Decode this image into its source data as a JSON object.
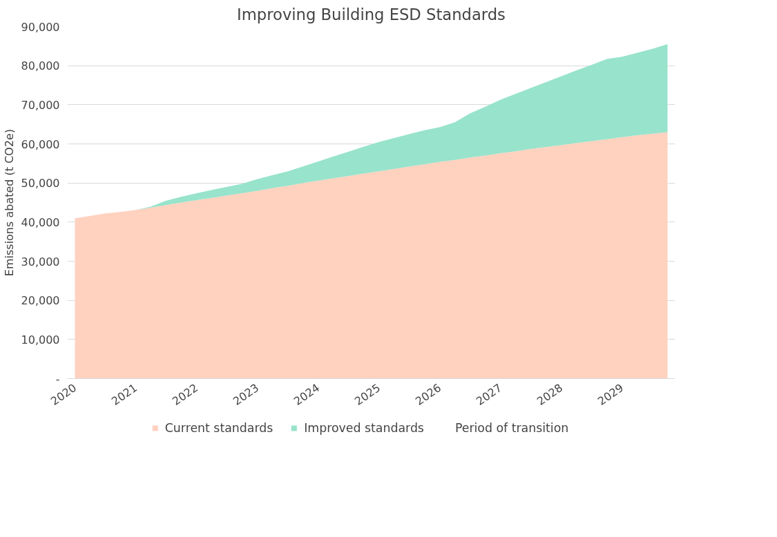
{
  "chart_data": {
    "type": "area",
    "stacked": true,
    "title": "Improving Building ESD Standards",
    "ylabel": "Emissions abated (t CO2e)",
    "categories": [
      "2020",
      null,
      null,
      null,
      "2021",
      null,
      null,
      null,
      "2022",
      null,
      null,
      null,
      "2023",
      null,
      null,
      null,
      "2024",
      null,
      null,
      null,
      "2025",
      null,
      null,
      null,
      "2026",
      null,
      null,
      null,
      "2027",
      null,
      null,
      null,
      "2028",
      null,
      null,
      null,
      "2029",
      null,
      null,
      null
    ],
    "series": [
      {
        "name": "Current standards",
        "color": "#ffd1bf",
        "values": [
          41000,
          41600,
          42200,
          42600,
          43100,
          43700,
          44400,
          45000,
          45600,
          46200,
          46800,
          47400,
          48000,
          48700,
          49300,
          50000,
          50600,
          51200,
          51800,
          52400,
          53000,
          53600,
          54200,
          54800,
          55400,
          55900,
          56500,
          57000,
          57600,
          58100,
          58700,
          59200,
          59700,
          60200,
          60700,
          61200,
          61700,
          62200,
          62600,
          63000
        ]
      },
      {
        "name": "Improved standards",
        "color": "#98e3cb",
        "values": [
          0,
          0,
          0,
          0,
          0,
          300,
          1100,
          1500,
          1800,
          2000,
          2200,
          2400,
          3000,
          3300,
          3700,
          4200,
          4900,
          5600,
          6200,
          6900,
          7500,
          7900,
          8300,
          8700,
          8900,
          9600,
          11300,
          12500,
          13700,
          14700,
          15600,
          16600,
          17600,
          18600,
          19500,
          20500,
          20600,
          21100,
          21700,
          22500
        ]
      },
      {
        "name": "Period of transition",
        "values": [
          null,
          null,
          null,
          null,
          null,
          null,
          null,
          null,
          null,
          null,
          null,
          null,
          null,
          null,
          null,
          null,
          null,
          null,
          null,
          null,
          null,
          null,
          null,
          null,
          null,
          null,
          null,
          null,
          null,
          null,
          null,
          null,
          null,
          null,
          null,
          null,
          null,
          null,
          null,
          null
        ]
      }
    ],
    "ylim": [
      0,
      90000
    ],
    "yticks": [
      {
        "value": 0,
        "label": "-"
      },
      {
        "value": 10000,
        "label": "10,000"
      },
      {
        "value": 20000,
        "label": "20,000"
      },
      {
        "value": 30000,
        "label": "30,000"
      },
      {
        "value": 40000,
        "label": "40,000"
      },
      {
        "value": 50000,
        "label": "50,000"
      },
      {
        "value": 60000,
        "label": "60,000"
      },
      {
        "value": 70000,
        "label": "70,000"
      },
      {
        "value": 80000,
        "label": "80,000"
      },
      {
        "value": 90000,
        "label": "90,000"
      }
    ],
    "grid": "y",
    "legend": "bottom"
  }
}
